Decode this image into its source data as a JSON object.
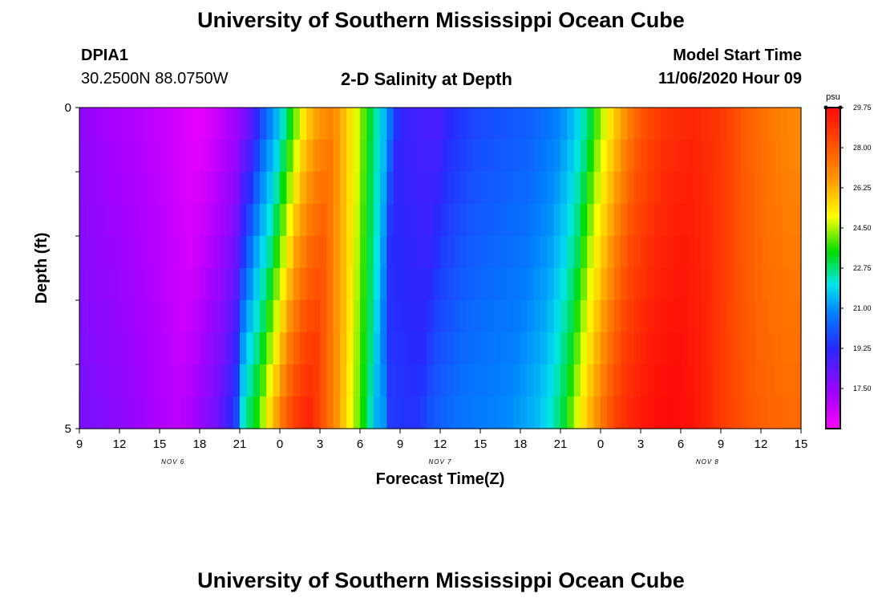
{
  "header": {
    "title_top": "University of Southern Mississippi Ocean Cube",
    "station": "DPIA1",
    "coords": "30.2500N 88.0750W",
    "plot_title": "2-D Salinity at Depth",
    "model_start_label": "Model Start Time",
    "model_start_value": "11/06/2020 Hour 09"
  },
  "footer": {
    "title_bottom": "University of Southern Mississippi Ocean Cube"
  },
  "chart_data": {
    "type": "heatmap",
    "title": "2-D Salinity at Depth",
    "xlabel": "Forecast Time(Z)",
    "ylabel": "Depth (ft)",
    "x_ticks": [
      "9",
      "12",
      "15",
      "18",
      "21",
      "0",
      "3",
      "6",
      "9",
      "12",
      "15",
      "18",
      "21",
      "0",
      "3",
      "6",
      "9",
      "12",
      "15"
    ],
    "x_tick_hours": [
      0,
      3,
      6,
      9,
      12,
      15,
      18,
      21,
      24,
      27,
      30,
      33,
      36,
      39,
      42,
      45,
      48,
      51,
      54
    ],
    "date_labels": [
      {
        "text": "NOV 6",
        "hour": 7
      },
      {
        "text": "NOV 7",
        "hour": 27
      },
      {
        "text": "NOV 8",
        "hour": 47
      }
    ],
    "y_ticks": [
      "0",
      "5"
    ],
    "y_tick_values": [
      0,
      5
    ],
    "ylim": [
      0,
      5
    ],
    "xlim": [
      0,
      54
    ],
    "depth_levels": [
      0.25,
      0.75,
      1.25,
      1.75,
      2.25,
      2.75,
      3.25,
      3.75,
      4.25,
      4.75
    ],
    "colorbar": {
      "unit": "psu",
      "min": 15.75,
      "max": 29.75,
      "tick_values": [
        17.5,
        19.25,
        21.0,
        22.75,
        24.5,
        26.25,
        28.0,
        29.75
      ],
      "tick_labels": [
        "17.50",
        "19.25",
        "21.00",
        "22.75",
        "24.50",
        "26.25",
        "28.00",
        "29.75"
      ]
    },
    "salinity_surface_profile": [
      [
        0,
        17.6
      ],
      [
        1,
        17.4
      ],
      [
        2,
        17.2
      ],
      [
        4,
        17.0
      ],
      [
        6,
        16.7
      ],
      [
        8,
        16.3
      ],
      [
        9,
        16.1
      ],
      [
        10,
        16.4
      ],
      [
        12,
        17.4
      ],
      [
        13,
        18.4
      ],
      [
        14,
        20.2
      ],
      [
        15,
        21.5
      ],
      [
        16,
        23.5
      ],
      [
        17,
        25.5
      ],
      [
        18,
        26.6
      ],
      [
        19,
        27.0
      ],
      [
        20,
        25.8
      ],
      [
        21,
        24.5
      ],
      [
        22,
        22.8
      ],
      [
        23,
        21.2
      ],
      [
        24,
        19.0
      ],
      [
        26,
        18.7
      ],
      [
        27,
        18.7
      ],
      [
        28,
        19.3
      ],
      [
        30,
        19.8
      ],
      [
        32,
        20.0
      ],
      [
        34,
        20.2
      ],
      [
        36,
        20.8
      ],
      [
        37,
        21.5
      ],
      [
        38,
        22.5
      ],
      [
        39,
        24.2
      ],
      [
        40,
        25.6
      ],
      [
        41,
        26.9
      ],
      [
        42,
        27.9
      ],
      [
        43,
        28.4
      ],
      [
        44,
        28.8
      ],
      [
        46,
        29.1
      ],
      [
        48,
        28.7
      ],
      [
        50,
        27.8
      ],
      [
        52,
        27.2
      ],
      [
        54,
        26.9
      ]
    ]
  }
}
